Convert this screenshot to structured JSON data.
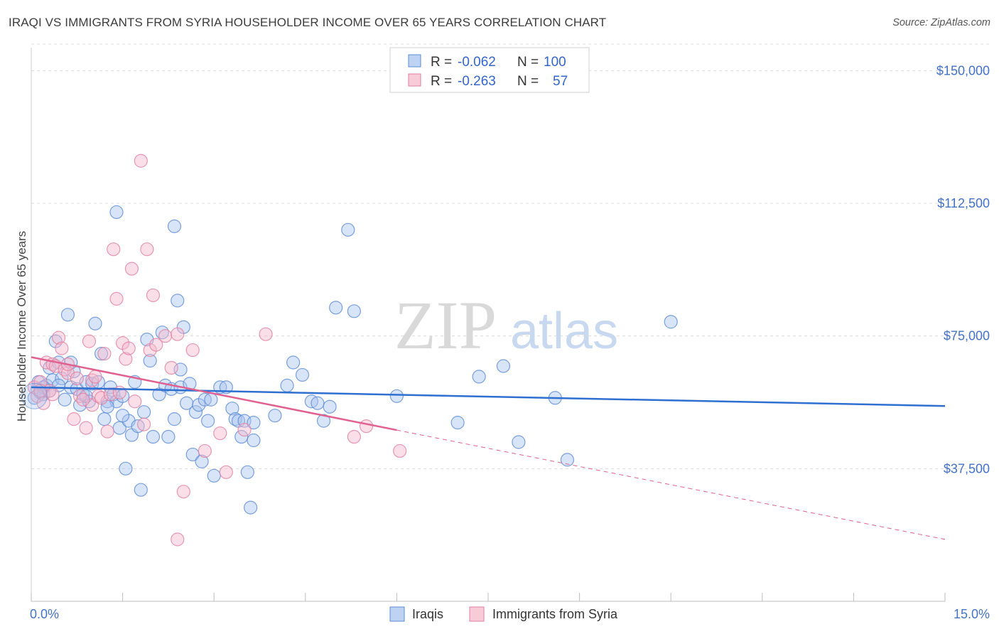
{
  "title": "IRAQI VS IMMIGRANTS FROM SYRIA HOUSEHOLDER INCOME OVER 65 YEARS CORRELATION CHART",
  "source": "Source: ZipAtlas.com",
  "watermark": {
    "zip": "ZIP",
    "atlas": "atlas"
  },
  "colors": {
    "blue_fill": "#a8c4ee",
    "blue_stroke": "#5b8bd6",
    "blue_line": "#2f6fd0",
    "pink_fill": "#f6b9cc",
    "pink_stroke": "#e07fa0",
    "pink_line": "#e0608f",
    "grid": "#dcdcdc",
    "axis_label": "#4472c4"
  },
  "legend": {
    "rows": [
      {
        "r_label": "R =",
        "r_value": "-0.062",
        "n_label": "N =",
        "n_value": "100"
      },
      {
        "r_label": "R =",
        "r_value": "-0.263",
        "n_label": "N =",
        "n_value": "57"
      }
    ]
  },
  "chart_data": {
    "type": "scatter",
    "title": "IRAQI VS IMMIGRANTS FROM SYRIA HOUSEHOLDER INCOME OVER 65 YEARS CORRELATION CHART",
    "xlabel": "",
    "ylabel": "Householder Income Over 65 years",
    "xlim": [
      0,
      15
    ],
    "ylim": [
      0,
      157500
    ],
    "x_tick_labels": [
      "0.0%",
      "15.0%"
    ],
    "y_ticks": [
      37500,
      75000,
      112500,
      150000
    ],
    "y_tick_labels": [
      "$37,500",
      "$75,000",
      "$112,500",
      "$150,000"
    ],
    "grid": true,
    "legend_position": "top-center",
    "series": [
      {
        "name": "Iraqis",
        "color": "#a8c4ee",
        "trend": {
          "x": [
            0,
            15
          ],
          "y": [
            60500,
            55200
          ],
          "dashed_from": null
        },
        "points": [
          [
            0.05,
            57500
          ],
          [
            0.1,
            60000
          ],
          [
            0.12,
            62000
          ],
          [
            0.15,
            59000
          ],
          [
            0.2,
            58500
          ],
          [
            0.25,
            61000
          ],
          [
            0.3,
            66000
          ],
          [
            0.35,
            62500
          ],
          [
            0.4,
            73500
          ],
          [
            0.45,
            67500
          ],
          [
            0.5,
            63000
          ],
          [
            0.55,
            57000
          ],
          [
            0.6,
            81000
          ],
          [
            0.65,
            60500
          ],
          [
            0.7,
            65000
          ],
          [
            0.75,
            60000
          ],
          [
            0.8,
            55500
          ],
          [
            0.85,
            58500
          ],
          [
            0.9,
            62000
          ],
          [
            0.95,
            56500
          ],
          [
            1.0,
            61500
          ],
          [
            1.05,
            78500
          ],
          [
            1.1,
            62000
          ],
          [
            1.15,
            70000
          ],
          [
            1.2,
            51500
          ],
          [
            1.25,
            56500
          ],
          [
            1.3,
            60500
          ],
          [
            1.35,
            58500
          ],
          [
            1.4,
            56500
          ],
          [
            1.45,
            49000
          ],
          [
            1.5,
            58000
          ],
          [
            1.55,
            37500
          ],
          [
            1.6,
            51000
          ],
          [
            1.65,
            47000
          ],
          [
            1.7,
            62000
          ],
          [
            1.75,
            49500
          ],
          [
            1.8,
            31500
          ],
          [
            1.85,
            53500
          ],
          [
            1.9,
            74000
          ],
          [
            1.95,
            68000
          ],
          [
            2.0,
            46500
          ],
          [
            2.1,
            58500
          ],
          [
            2.15,
            76000
          ],
          [
            2.2,
            61000
          ],
          [
            2.25,
            46500
          ],
          [
            2.3,
            60000
          ],
          [
            2.35,
            51500
          ],
          [
            2.4,
            85000
          ],
          [
            2.45,
            60500
          ],
          [
            2.5,
            77500
          ],
          [
            2.55,
            56000
          ],
          [
            2.6,
            61500
          ],
          [
            2.65,
            41500
          ],
          [
            2.7,
            53500
          ],
          [
            2.75,
            55500
          ],
          [
            2.8,
            39500
          ],
          [
            2.85,
            57000
          ],
          [
            2.9,
            51000
          ],
          [
            2.95,
            57000
          ],
          [
            3.0,
            35500
          ],
          [
            3.1,
            60500
          ],
          [
            3.2,
            60500
          ],
          [
            3.3,
            54500
          ],
          [
            3.35,
            51500
          ],
          [
            3.4,
            51000
          ],
          [
            3.45,
            46500
          ],
          [
            3.5,
            51000
          ],
          [
            3.55,
            36500
          ],
          [
            3.6,
            26500
          ],
          [
            3.65,
            45500
          ],
          [
            4.0,
            52500
          ],
          [
            4.2,
            61000
          ],
          [
            4.3,
            67500
          ],
          [
            4.45,
            64000
          ],
          [
            4.6,
            56500
          ],
          [
            4.7,
            56000
          ],
          [
            4.8,
            51000
          ],
          [
            4.9,
            55000
          ],
          [
            5.0,
            83000
          ],
          [
            5.3,
            82000
          ],
          [
            6.0,
            58000
          ],
          [
            7.0,
            50500
          ],
          [
            7.35,
            63500
          ],
          [
            7.75,
            66500
          ],
          [
            8.0,
            45000
          ],
          [
            8.6,
            57500
          ],
          [
            8.8,
            40000
          ],
          [
            10.5,
            79000
          ],
          [
            1.4,
            110000
          ],
          [
            2.35,
            106000
          ],
          [
            5.2,
            105000
          ],
          [
            1.5,
            52500
          ],
          [
            0.3,
            59500
          ],
          [
            0.45,
            61000
          ],
          [
            0.65,
            67500
          ],
          [
            0.2,
            60500
          ],
          [
            0.9,
            58000
          ],
          [
            1.25,
            55000
          ],
          [
            2.45,
            65500
          ],
          [
            3.65,
            50500
          ]
        ]
      },
      {
        "name": "Immigrants from Syria",
        "color": "#f6b9cc",
        "trend": {
          "x": [
            0,
            15
          ],
          "y": [
            69000,
            17500
          ],
          "dashed_from": 6.0
        },
        "points": [
          [
            0.05,
            60500
          ],
          [
            0.1,
            58000
          ],
          [
            0.15,
            62000
          ],
          [
            0.2,
            56000
          ],
          [
            0.25,
            67500
          ],
          [
            0.3,
            59500
          ],
          [
            0.35,
            67000
          ],
          [
            0.4,
            66500
          ],
          [
            0.45,
            74500
          ],
          [
            0.5,
            71500
          ],
          [
            0.55,
            65500
          ],
          [
            0.6,
            64500
          ],
          [
            0.7,
            51500
          ],
          [
            0.75,
            63000
          ],
          [
            0.8,
            58000
          ],
          [
            0.9,
            49000
          ],
          [
            0.95,
            73500
          ],
          [
            1.0,
            55500
          ],
          [
            1.1,
            58000
          ],
          [
            1.15,
            57500
          ],
          [
            1.2,
            70000
          ],
          [
            1.25,
            48000
          ],
          [
            1.3,
            58500
          ],
          [
            1.35,
            99500
          ],
          [
            1.4,
            85500
          ],
          [
            1.5,
            73000
          ],
          [
            1.55,
            68500
          ],
          [
            1.6,
            71500
          ],
          [
            1.65,
            94000
          ],
          [
            1.7,
            56500
          ],
          [
            1.8,
            124500
          ],
          [
            1.85,
            50000
          ],
          [
            1.9,
            99500
          ],
          [
            1.95,
            71000
          ],
          [
            2.0,
            86500
          ],
          [
            2.05,
            72500
          ],
          [
            2.2,
            75000
          ],
          [
            2.3,
            66000
          ],
          [
            2.4,
            75500
          ],
          [
            2.5,
            31000
          ],
          [
            2.4,
            17500
          ],
          [
            2.65,
            71000
          ],
          [
            2.85,
            42500
          ],
          [
            3.1,
            47500
          ],
          [
            3.2,
            36500
          ],
          [
            3.5,
            48500
          ],
          [
            3.85,
            75500
          ],
          [
            5.3,
            46500
          ],
          [
            5.5,
            49500
          ],
          [
            6.05,
            42500
          ],
          [
            0.6,
            67000
          ],
          [
            0.35,
            58500
          ],
          [
            1.0,
            62500
          ],
          [
            0.85,
            57000
          ],
          [
            1.05,
            63500
          ],
          [
            0.15,
            59500
          ],
          [
            1.45,
            59000
          ]
        ]
      }
    ]
  },
  "bottom_legend": [
    "Iraqis",
    "Immigrants from Syria"
  ]
}
